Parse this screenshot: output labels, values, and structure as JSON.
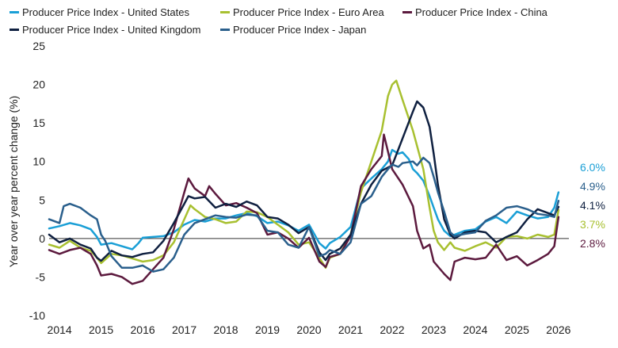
{
  "chart_data": {
    "type": "line",
    "title": "",
    "xlabel": "",
    "ylabel": "Year over year percent change (%)",
    "ylim": [
      -10,
      25
    ],
    "xlim": [
      2013.75,
      2026.25
    ],
    "yticks": [
      -10,
      -5,
      0,
      5,
      10,
      15,
      20,
      25
    ],
    "xtick_labels": [
      "2014",
      "2015",
      "2016",
      "2017",
      "2018",
      "2019",
      "2020",
      "2021",
      "2022",
      "2023",
      "2024",
      "2025",
      "2026"
    ],
    "grid": false,
    "zero_line": true,
    "legend_position": "top-left",
    "series": [
      {
        "name": "Producer Price Index - United States",
        "color": "#1a9fd6",
        "end_label": "6.0%",
        "points": [
          [
            2013.75,
            1.3
          ],
          [
            2014.0,
            1.6
          ],
          [
            2014.25,
            2.0
          ],
          [
            2014.5,
            1.7
          ],
          [
            2014.75,
            1.2
          ],
          [
            2014.9,
            0.2
          ],
          [
            2015.0,
            -0.8
          ],
          [
            2015.25,
            -0.6
          ],
          [
            2015.5,
            -1.0
          ],
          [
            2015.75,
            -1.4
          ],
          [
            2015.9,
            -0.6
          ],
          [
            2016.0,
            0.1
          ],
          [
            2016.25,
            0.2
          ],
          [
            2016.5,
            0.3
          ],
          [
            2016.75,
            0.8
          ],
          [
            2017.0,
            1.8
          ],
          [
            2017.25,
            2.4
          ],
          [
            2017.5,
            2.2
          ],
          [
            2017.75,
            2.6
          ],
          [
            2018.0,
            2.6
          ],
          [
            2018.25,
            3.0
          ],
          [
            2018.5,
            3.3
          ],
          [
            2018.75,
            2.9
          ],
          [
            2019.0,
            2.0
          ],
          [
            2019.25,
            2.2
          ],
          [
            2019.5,
            1.7
          ],
          [
            2019.75,
            1.0
          ],
          [
            2020.0,
            1.8
          ],
          [
            2020.25,
            -0.6
          ],
          [
            2020.4,
            -1.3
          ],
          [
            2020.5,
            -0.6
          ],
          [
            2020.75,
            0.2
          ],
          [
            2021.0,
            1.5
          ],
          [
            2021.25,
            6.5
          ],
          [
            2021.5,
            7.8
          ],
          [
            2021.75,
            9.0
          ],
          [
            2021.9,
            10.0
          ],
          [
            2022.0,
            11.5
          ],
          [
            2022.15,
            11.0
          ],
          [
            2022.25,
            11.2
          ],
          [
            2022.4,
            10.3
          ],
          [
            2022.5,
            9.0
          ],
          [
            2022.6,
            8.5
          ],
          [
            2022.75,
            7.5
          ],
          [
            2022.9,
            5.5
          ],
          [
            2023.0,
            4.0
          ],
          [
            2023.1,
            2.5
          ],
          [
            2023.25,
            1.0
          ],
          [
            2023.4,
            0.3
          ],
          [
            2023.5,
            0.5
          ],
          [
            2023.75,
            1.0
          ],
          [
            2024.0,
            1.2
          ],
          [
            2024.25,
            2.2
          ],
          [
            2024.5,
            2.8
          ],
          [
            2024.75,
            2.0
          ],
          [
            2025.0,
            3.5
          ],
          [
            2025.25,
            3.0
          ],
          [
            2025.5,
            2.6
          ],
          [
            2025.75,
            2.8
          ],
          [
            2025.9,
            4.0
          ],
          [
            2026.0,
            6.0
          ]
        ]
      },
      {
        "name": "Producer Price Index - Euro Area",
        "color": "#a8c030",
        "end_label": "3.7%",
        "points": [
          [
            2013.75,
            -0.8
          ],
          [
            2014.0,
            -1.2
          ],
          [
            2014.25,
            -0.3
          ],
          [
            2014.5,
            -1.2
          ],
          [
            2014.75,
            -1.6
          ],
          [
            2014.9,
            -2.5
          ],
          [
            2015.0,
            -3.2
          ],
          [
            2015.25,
            -2.0
          ],
          [
            2015.5,
            -2.2
          ],
          [
            2015.75,
            -2.6
          ],
          [
            2016.0,
            -3.0
          ],
          [
            2016.25,
            -2.8
          ],
          [
            2016.5,
            -2.2
          ],
          [
            2016.75,
            -0.5
          ],
          [
            2017.0,
            2.5
          ],
          [
            2017.15,
            4.3
          ],
          [
            2017.25,
            3.8
          ],
          [
            2017.5,
            2.8
          ],
          [
            2017.75,
            2.5
          ],
          [
            2018.0,
            2.0
          ],
          [
            2018.25,
            2.2
          ],
          [
            2018.5,
            3.5
          ],
          [
            2018.75,
            3.4
          ],
          [
            2019.0,
            2.8
          ],
          [
            2019.25,
            1.8
          ],
          [
            2019.5,
            0.8
          ],
          [
            2019.75,
            -0.8
          ],
          [
            2020.0,
            -0.5
          ],
          [
            2020.25,
            -2.5
          ],
          [
            2020.4,
            -3.8
          ],
          [
            2020.5,
            -2.5
          ],
          [
            2020.75,
            -2.0
          ],
          [
            2021.0,
            0.5
          ],
          [
            2021.25,
            6.0
          ],
          [
            2021.5,
            10.0
          ],
          [
            2021.75,
            14.0
          ],
          [
            2021.9,
            18.5
          ],
          [
            2022.0,
            20.0
          ],
          [
            2022.1,
            20.5
          ],
          [
            2022.25,
            18.0
          ],
          [
            2022.5,
            14.0
          ],
          [
            2022.75,
            9.0
          ],
          [
            2022.9,
            4.0
          ],
          [
            2023.0,
            1.0
          ],
          [
            2023.1,
            -0.5
          ],
          [
            2023.25,
            -1.5
          ],
          [
            2023.4,
            -0.5
          ],
          [
            2023.5,
            -1.2
          ],
          [
            2023.75,
            -1.6
          ],
          [
            2024.0,
            -1.0
          ],
          [
            2024.25,
            -0.5
          ],
          [
            2024.5,
            -1.2
          ],
          [
            2024.75,
            0.2
          ],
          [
            2025.0,
            0.3
          ],
          [
            2025.25,
            0.0
          ],
          [
            2025.5,
            0.5
          ],
          [
            2025.75,
            0.2
          ],
          [
            2025.9,
            0.5
          ],
          [
            2026.0,
            3.7
          ]
        ]
      },
      {
        "name": "Producer Price Index - China",
        "color": "#5c1a3e",
        "end_label": "2.8%",
        "points": [
          [
            2013.75,
            -1.5
          ],
          [
            2014.0,
            -2.0
          ],
          [
            2014.25,
            -1.5
          ],
          [
            2014.5,
            -1.2
          ],
          [
            2014.75,
            -2.0
          ],
          [
            2014.9,
            -3.5
          ],
          [
            2015.0,
            -4.8
          ],
          [
            2015.25,
            -4.6
          ],
          [
            2015.5,
            -5.0
          ],
          [
            2015.75,
            -5.9
          ],
          [
            2016.0,
            -5.5
          ],
          [
            2016.25,
            -4.0
          ],
          [
            2016.5,
            -2.5
          ],
          [
            2016.75,
            1.2
          ],
          [
            2017.0,
            6.0
          ],
          [
            2017.1,
            7.8
          ],
          [
            2017.25,
            6.5
          ],
          [
            2017.5,
            5.5
          ],
          [
            2017.6,
            6.8
          ],
          [
            2017.75,
            5.8
          ],
          [
            2018.0,
            4.3
          ],
          [
            2018.25,
            4.6
          ],
          [
            2018.5,
            4.0
          ],
          [
            2018.75,
            3.3
          ],
          [
            2019.0,
            0.5
          ],
          [
            2019.25,
            0.8
          ],
          [
            2019.5,
            0.0
          ],
          [
            2019.75,
            -1.2
          ],
          [
            2020.0,
            0.1
          ],
          [
            2020.25,
            -3.0
          ],
          [
            2020.4,
            -3.7
          ],
          [
            2020.5,
            -2.4
          ],
          [
            2020.75,
            -2.0
          ],
          [
            2021.0,
            0.3
          ],
          [
            2021.25,
            6.8
          ],
          [
            2021.5,
            9.0
          ],
          [
            2021.75,
            10.7
          ],
          [
            2021.8,
            13.5
          ],
          [
            2022.0,
            9.0
          ],
          [
            2022.25,
            7.0
          ],
          [
            2022.5,
            4.2
          ],
          [
            2022.6,
            1.0
          ],
          [
            2022.75,
            -1.3
          ],
          [
            2022.9,
            -0.8
          ],
          [
            2023.0,
            -3.0
          ],
          [
            2023.25,
            -4.6
          ],
          [
            2023.4,
            -5.4
          ],
          [
            2023.5,
            -3.0
          ],
          [
            2023.75,
            -2.5
          ],
          [
            2024.0,
            -2.7
          ],
          [
            2024.25,
            -2.5
          ],
          [
            2024.5,
            -0.8
          ],
          [
            2024.75,
            -2.8
          ],
          [
            2025.0,
            -2.3
          ],
          [
            2025.25,
            -3.5
          ],
          [
            2025.5,
            -2.8
          ],
          [
            2025.75,
            -2.0
          ],
          [
            2025.9,
            -1.0
          ],
          [
            2026.0,
            2.8
          ]
        ]
      },
      {
        "name": "Producer Price Index - United Kingdom",
        "color": "#0f2040",
        "end_label": "4.1%",
        "points": [
          [
            2013.75,
            0.5
          ],
          [
            2014.0,
            -0.5
          ],
          [
            2014.25,
            0.0
          ],
          [
            2014.5,
            -0.8
          ],
          [
            2014.75,
            -1.3
          ],
          [
            2014.9,
            -2.5
          ],
          [
            2015.0,
            -2.9
          ],
          [
            2015.25,
            -1.6
          ],
          [
            2015.5,
            -2.2
          ],
          [
            2015.75,
            -2.4
          ],
          [
            2016.0,
            -2.0
          ],
          [
            2016.25,
            -1.8
          ],
          [
            2016.5,
            -0.3
          ],
          [
            2016.75,
            2.0
          ],
          [
            2017.0,
            4.5
          ],
          [
            2017.1,
            5.5
          ],
          [
            2017.25,
            5.2
          ],
          [
            2017.5,
            5.4
          ],
          [
            2017.75,
            4.0
          ],
          [
            2018.0,
            4.5
          ],
          [
            2018.25,
            4.1
          ],
          [
            2018.5,
            4.8
          ],
          [
            2018.75,
            4.3
          ],
          [
            2019.0,
            2.8
          ],
          [
            2019.25,
            2.6
          ],
          [
            2019.5,
            1.8
          ],
          [
            2019.75,
            0.7
          ],
          [
            2020.0,
            1.5
          ],
          [
            2020.25,
            -1.8
          ],
          [
            2020.4,
            -2.8
          ],
          [
            2020.5,
            -2.0
          ],
          [
            2020.75,
            -1.3
          ],
          [
            2021.0,
            0.5
          ],
          [
            2021.25,
            4.5
          ],
          [
            2021.5,
            7.0
          ],
          [
            2021.75,
            8.8
          ],
          [
            2022.0,
            9.5
          ],
          [
            2022.25,
            13.0
          ],
          [
            2022.5,
            16.5
          ],
          [
            2022.6,
            17.8
          ],
          [
            2022.75,
            17.0
          ],
          [
            2022.9,
            14.5
          ],
          [
            2023.0,
            11.0
          ],
          [
            2023.1,
            7.0
          ],
          [
            2023.25,
            2.5
          ],
          [
            2023.4,
            0.5
          ],
          [
            2023.5,
            0.0
          ],
          [
            2023.75,
            0.8
          ],
          [
            2024.0,
            1.0
          ],
          [
            2024.25,
            0.8
          ],
          [
            2024.5,
            -0.5
          ],
          [
            2024.75,
            0.2
          ],
          [
            2025.0,
            0.8
          ],
          [
            2025.25,
            2.5
          ],
          [
            2025.5,
            3.8
          ],
          [
            2025.75,
            3.3
          ],
          [
            2025.9,
            3.0
          ],
          [
            2026.0,
            4.1
          ]
        ]
      },
      {
        "name": "Producer Price Index - Japan",
        "color": "#2a5f8c",
        "end_label": "4.9%",
        "points": [
          [
            2013.75,
            2.5
          ],
          [
            2014.0,
            2.0
          ],
          [
            2014.1,
            4.2
          ],
          [
            2014.25,
            4.5
          ],
          [
            2014.5,
            4.0
          ],
          [
            2014.75,
            3.0
          ],
          [
            2014.9,
            2.5
          ],
          [
            2015.0,
            0.5
          ],
          [
            2015.1,
            -0.3
          ],
          [
            2015.25,
            -2.3
          ],
          [
            2015.5,
            -3.8
          ],
          [
            2015.75,
            -3.8
          ],
          [
            2016.0,
            -3.5
          ],
          [
            2016.25,
            -4.3
          ],
          [
            2016.5,
            -4.0
          ],
          [
            2016.75,
            -2.5
          ],
          [
            2017.0,
            0.5
          ],
          [
            2017.25,
            2.0
          ],
          [
            2017.5,
            2.5
          ],
          [
            2017.75,
            3.0
          ],
          [
            2018.0,
            2.8
          ],
          [
            2018.25,
            2.7
          ],
          [
            2018.5,
            3.1
          ],
          [
            2018.75,
            3.0
          ],
          [
            2019.0,
            1.0
          ],
          [
            2019.25,
            0.8
          ],
          [
            2019.5,
            -0.8
          ],
          [
            2019.75,
            -1.2
          ],
          [
            2020.0,
            1.5
          ],
          [
            2020.25,
            -2.3
          ],
          [
            2020.4,
            -2.0
          ],
          [
            2020.5,
            -1.5
          ],
          [
            2020.75,
            -2.0
          ],
          [
            2021.0,
            -0.5
          ],
          [
            2021.25,
            4.5
          ],
          [
            2021.5,
            5.5
          ],
          [
            2021.75,
            8.0
          ],
          [
            2021.9,
            9.0
          ],
          [
            2022.0,
            9.6
          ],
          [
            2022.15,
            9.3
          ],
          [
            2022.25,
            9.8
          ],
          [
            2022.5,
            10.0
          ],
          [
            2022.6,
            9.5
          ],
          [
            2022.75,
            10.5
          ],
          [
            2022.9,
            9.8
          ],
          [
            2023.0,
            8.0
          ],
          [
            2023.1,
            6.0
          ],
          [
            2023.25,
            3.5
          ],
          [
            2023.4,
            0.8
          ],
          [
            2023.5,
            0.3
          ],
          [
            2023.75,
            0.6
          ],
          [
            2024.0,
            0.8
          ],
          [
            2024.25,
            2.3
          ],
          [
            2024.5,
            3.0
          ],
          [
            2024.75,
            4.0
          ],
          [
            2025.0,
            4.2
          ],
          [
            2025.25,
            3.8
          ],
          [
            2025.5,
            3.2
          ],
          [
            2025.75,
            3.0
          ],
          [
            2025.9,
            2.8
          ],
          [
            2026.0,
            4.9
          ]
        ]
      }
    ]
  }
}
